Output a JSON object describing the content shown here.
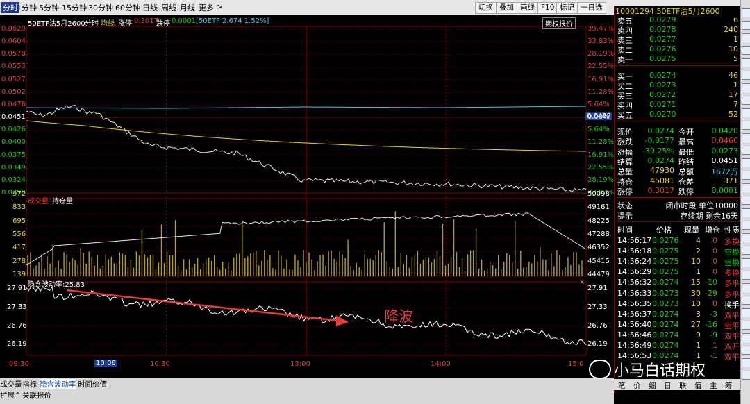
{
  "toolbar": {
    "periods": [
      "分时",
      "1分钟",
      "5分钟",
      "15分钟",
      "30分钟",
      "60分钟",
      "日线",
      "周线",
      "月线",
      "更多"
    ],
    "more_arrow": ">",
    "buttons": [
      "切换",
      "叠加",
      "画线",
      "F10",
      "标记",
      "一日选"
    ]
  },
  "chart_header": {
    "name": "50ETF沽5月2600",
    "mode": "分时",
    "avg_label": "均线",
    "limit_up_label": "涨停",
    "limit_up_value": "0.3017",
    "limit_down_label": "跌停",
    "limit_down_value": "0.0001",
    "underlying": "[50ETF 2.674 1.52%]",
    "option_price_button": "期权报价"
  },
  "price_axis": {
    "left": [
      "0.0629",
      "0.0604",
      "0.0578",
      "0.0553",
      "0.0527",
      "0.0502",
      "0.0476",
      "0.0451",
      "0.0426",
      "0.0400",
      "0.0375",
      "0.0349",
      "0.0324",
      "0.0298"
    ],
    "right": [
      "39.47%",
      "33.83%",
      "28.19%",
      "22.55%",
      "16.91%",
      "11.28%",
      "5.64%",
      "0.00%",
      "5.64%",
      "11.28%",
      "16.91%",
      "22.55%",
      "28.19%",
      "33.83%"
    ],
    "current_price_tag": "0.0427"
  },
  "volume_panel": {
    "label_volume": "成交量",
    "label_oi": "持仓量",
    "left": [
      "972",
      "833",
      "695",
      "556",
      "417",
      "278",
      "139"
    ],
    "right": [
      "50098",
      "49161",
      "48225",
      "47288",
      "46352",
      "45415",
      "44479"
    ]
  },
  "iv_panel": {
    "label": "隐含波动率:25.83",
    "left": [
      "27.91",
      "27.33",
      "26.76",
      "26.19"
    ],
    "right": [
      "27.91",
      "27.33",
      "26.76",
      "26.19"
    ],
    "close_glyph": "×",
    "annotation": "降波"
  },
  "time_axis": {
    "labels": [
      "09:30",
      "10:06",
      "10:30",
      "13:00",
      "14:00",
      "15:0"
    ]
  },
  "bottom_tabs": {
    "row1": [
      "成交量",
      "指标",
      "隐含波动率",
      "时间价值"
    ],
    "row2": [
      "扩展^",
      "关联报价"
    ]
  },
  "quote": {
    "title": "10001294 50ETF沽5月2600",
    "asks": [
      {
        "label": "卖五",
        "price": "0.0279",
        "qty": "6"
      },
      {
        "label": "卖四",
        "price": "0.0278",
        "qty": "240"
      },
      {
        "label": "卖三",
        "price": "0.0277",
        "qty": "1"
      },
      {
        "label": "卖二",
        "price": "0.0276",
        "qty": "10"
      },
      {
        "label": "卖一",
        "price": "0.0275",
        "qty": "5"
      }
    ],
    "bids": [
      {
        "label": "买一",
        "price": "0.0274",
        "qty": "46"
      },
      {
        "label": "买二",
        "price": "0.0273",
        "qty": "1"
      },
      {
        "label": "买三",
        "price": "0.0272",
        "qty": "17"
      },
      {
        "label": "买四",
        "price": "0.0271",
        "qty": "7"
      },
      {
        "label": "买五",
        "price": "0.0270",
        "qty": "52"
      }
    ],
    "stats": [
      {
        "l1": "现价",
        "v1": "0.0274",
        "c1": "grn",
        "l2": "今开",
        "v2": "0.0420",
        "c2": "grn"
      },
      {
        "l1": "涨跌",
        "v1": "-0.0177",
        "c1": "grn",
        "l2": "最高",
        "v2": "0.0460",
        "c2": "red"
      },
      {
        "l1": "涨幅",
        "v1": "-39.25%",
        "c1": "grn",
        "l2": "最低",
        "v2": "0.0273",
        "c2": "grn"
      },
      {
        "l1": "结算",
        "v1": "0.0274",
        "c1": "grn",
        "l2": "昨结",
        "v2": "0.0451",
        "c2": "wht"
      },
      {
        "l1": "总量",
        "v1": "47930",
        "c1": "yel",
        "l2": "总额",
        "v2": "1672万",
        "c2": "cyan"
      },
      {
        "l1": "持仓",
        "v1": "45081",
        "c1": "yel",
        "l2": "仓差",
        "v2": "371",
        "c2": "yel"
      },
      {
        "l1": "涨停",
        "v1": "0.3017",
        "c1": "red",
        "l2": "跌停",
        "v2": "0.0001",
        "c2": "grn"
      }
    ],
    "status_label": "状态",
    "status_value": "闭市时段 单位10000",
    "hint_label": "提示",
    "hint_value": "存续期 剩余16天",
    "ticks_header": [
      "时间",
      "价格",
      "现量",
      "增仓",
      "性质"
    ],
    "ticks": [
      {
        "time": "14:56:17",
        "price": "0.0276",
        "pc": "grn",
        "vol": "4",
        "oi": "0",
        "oc": "red",
        "nature": "多换",
        "nc": "red"
      },
      {
        "time": "14:56:18",
        "price": "0.0275",
        "pc": "grn",
        "vol": "2",
        "oi": "0",
        "oc": "red",
        "nature": "空换",
        "nc": "grn"
      },
      {
        "time": "14:56:24",
        "price": "0.0275",
        "pc": "grn",
        "vol": "10",
        "oi": "0",
        "oc": "red",
        "nature": "空换",
        "nc": "grn"
      },
      {
        "time": "14:56:29",
        "price": "0.0275",
        "pc": "grn",
        "vol": "1",
        "oi": "0",
        "oc": "red",
        "nature": "多换",
        "nc": "red"
      },
      {
        "time": "14:56:32",
        "price": "0.0274",
        "pc": "grn",
        "vol": "15",
        "oi": "-10",
        "oc": "grn",
        "nature": "多平",
        "nc": "red"
      },
      {
        "time": "14:56:33",
        "price": "0.0273",
        "pc": "grn",
        "vol": "30",
        "oi": "-29",
        "oc": "grn",
        "nature": "多平",
        "nc": "red"
      },
      {
        "time": "14:56:35",
        "price": "0.0273",
        "pc": "grn",
        "vol": "10",
        "oi": "0",
        "oc": "red",
        "nature": "换手",
        "nc": "wht"
      },
      {
        "time": "14:56:37",
        "price": "0.0274",
        "pc": "grn",
        "vol": "3",
        "oi": "-3",
        "oc": "grn",
        "nature": "双平",
        "nc": "red"
      },
      {
        "time": "14:56:40",
        "price": "0.0274",
        "pc": "grn",
        "vol": "27",
        "oi": "-16",
        "oc": "grn",
        "nature": "空平",
        "nc": "red"
      },
      {
        "time": "14:56:46",
        "price": "0.0274",
        "pc": "grn",
        "vol": "9",
        "oi": "-9",
        "oc": "grn",
        "nature": "双平",
        "nc": "red"
      },
      {
        "time": "14:56:49",
        "price": "0.0274",
        "pc": "grn",
        "vol": "1",
        "oi": "1",
        "oc": "red",
        "nature": "双开",
        "nc": "red"
      },
      {
        "time": "14:56:53",
        "price": "0.0274",
        "pc": "grn",
        "vol": "1",
        "oi": "-1",
        "oc": "grn",
        "nature": "双平",
        "nc": "red"
      }
    ],
    "right_tabs": [
      "笔",
      "价",
      "细",
      "日",
      "联",
      "值",
      "主",
      "筹"
    ]
  },
  "watermark": "小马白话期权",
  "colors": {
    "grid": "#7a0000",
    "price_line": "#e8e8e8",
    "avg_line": "#e8d21e",
    "oi_line": "#e8e8e8",
    "vol_bar": "#b0a020",
    "arrow": "#e83c3c",
    "accent_blue": "#1f3b8f"
  }
}
